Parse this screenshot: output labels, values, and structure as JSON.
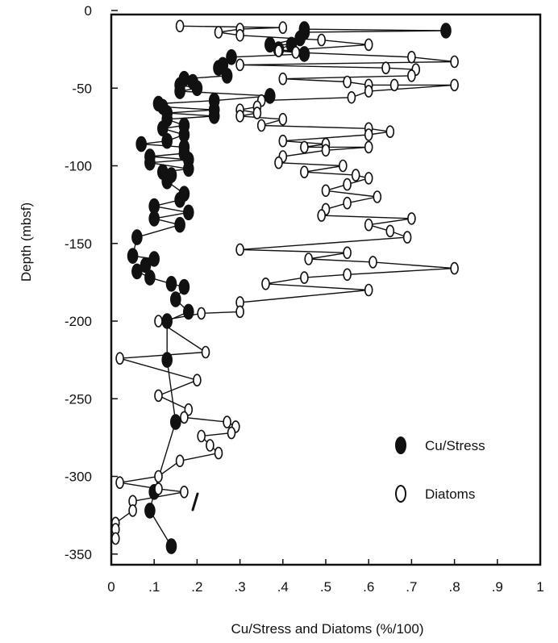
{
  "chart_data": {
    "type": "scatter",
    "xlabel": "Cu/Stress and Diatoms (%/100)",
    "ylabel": "Depth (mbsf)",
    "xlim": [
      0,
      1
    ],
    "ylim": [
      -360,
      0
    ],
    "x_ticks": [
      {
        "value": 0,
        "label": "0"
      },
      {
        "value": 0.1,
        "label": ".1"
      },
      {
        "value": 0.2,
        "label": ".2"
      },
      {
        "value": 0.3,
        "label": ".3"
      },
      {
        "value": 0.4,
        "label": ".4"
      },
      {
        "value": 0.5,
        "label": ".5"
      },
      {
        "value": 0.6,
        "label": ".6"
      },
      {
        "value": 0.7,
        "label": ".7"
      },
      {
        "value": 0.8,
        "label": ".8"
      },
      {
        "value": 0.9,
        "label": ".9"
      },
      {
        "value": 1.0,
        "label": "1"
      }
    ],
    "y_ticks": [
      {
        "value": 0,
        "label": "0"
      },
      {
        "value": -50,
        "label": "-50"
      },
      {
        "value": -100,
        "label": "-100"
      },
      {
        "value": -150,
        "label": "-150"
      },
      {
        "value": -200,
        "label": "-200"
      },
      {
        "value": -250,
        "label": "-250"
      },
      {
        "value": -300,
        "label": "-300"
      },
      {
        "value": -350,
        "label": "-350"
      }
    ],
    "legend_position": "lower-right",
    "series": [
      {
        "name": "Cu/Stress",
        "marker": "filled-ellipse",
        "color": "#111111",
        "points": [
          [
            0.45,
            -12
          ],
          [
            0.78,
            -13
          ],
          [
            0.45,
            -14
          ],
          [
            0.44,
            -18
          ],
          [
            0.37,
            -22
          ],
          [
            0.42,
            -22
          ],
          [
            0.39,
            -25
          ],
          [
            0.45,
            -28
          ],
          [
            0.28,
            -30
          ],
          [
            0.26,
            -35
          ],
          [
            0.25,
            -37
          ],
          [
            0.27,
            -42
          ],
          [
            0.17,
            -44
          ],
          [
            0.19,
            -46
          ],
          [
            0.16,
            -48
          ],
          [
            0.2,
            -50
          ],
          [
            0.16,
            -52
          ],
          [
            0.37,
            -55
          ],
          [
            0.24,
            -58
          ],
          [
            0.11,
            -60
          ],
          [
            0.12,
            -62
          ],
          [
            0.24,
            -64
          ],
          [
            0.13,
            -66
          ],
          [
            0.24,
            -68
          ],
          [
            0.13,
            -70
          ],
          [
            0.17,
            -74
          ],
          [
            0.12,
            -76
          ],
          [
            0.17,
            -80
          ],
          [
            0.13,
            -84
          ],
          [
            0.07,
            -86
          ],
          [
            0.17,
            -88
          ],
          [
            0.17,
            -92
          ],
          [
            0.09,
            -94
          ],
          [
            0.18,
            -96
          ],
          [
            0.09,
            -98
          ],
          [
            0.18,
            -102
          ],
          [
            0.12,
            -104
          ],
          [
            0.14,
            -106
          ],
          [
            0.13,
            -110
          ],
          [
            0.17,
            -118
          ],
          [
            0.16,
            -122
          ],
          [
            0.1,
            -126
          ],
          [
            0.18,
            -130
          ],
          [
            0.1,
            -134
          ],
          [
            0.16,
            -138
          ],
          [
            0.06,
            -146
          ],
          [
            0.05,
            -158
          ],
          [
            0.1,
            -160
          ],
          [
            0.08,
            -164
          ],
          [
            0.06,
            -168
          ],
          [
            0.09,
            -172
          ],
          [
            0.14,
            -176
          ],
          [
            0.17,
            -178
          ],
          [
            0.15,
            -186
          ],
          [
            0.18,
            -194
          ],
          [
            0.13,
            -200
          ],
          [
            0.13,
            -225
          ],
          [
            0.15,
            -265
          ],
          [
            0.1,
            -310
          ],
          [
            0.09,
            -322
          ],
          [
            0.14,
            -345
          ]
        ]
      },
      {
        "name": "Diatoms",
        "marker": "open-ellipse",
        "color": "#111111",
        "points": [
          [
            0.16,
            -10
          ],
          [
            0.4,
            -11
          ],
          [
            0.3,
            -12
          ],
          [
            0.25,
            -14
          ],
          [
            0.3,
            -16
          ],
          [
            0.49,
            -19
          ],
          [
            0.6,
            -22
          ],
          [
            0.39,
            -26
          ],
          [
            0.43,
            -27
          ],
          [
            0.7,
            -30
          ],
          [
            0.8,
            -33
          ],
          [
            0.3,
            -35
          ],
          [
            0.64,
            -37
          ],
          [
            0.71,
            -38
          ],
          [
            0.7,
            -42
          ],
          [
            0.4,
            -44
          ],
          [
            0.55,
            -46
          ],
          [
            0.6,
            -48
          ],
          [
            0.66,
            -48
          ],
          [
            0.8,
            -48
          ],
          [
            0.6,
            -52
          ],
          [
            0.56,
            -56
          ],
          [
            0.35,
            -58
          ],
          [
            0.34,
            -62
          ],
          [
            0.3,
            -64
          ],
          [
            0.34,
            -66
          ],
          [
            0.3,
            -68
          ],
          [
            0.4,
            -70
          ],
          [
            0.35,
            -74
          ],
          [
            0.6,
            -76
          ],
          [
            0.65,
            -78
          ],
          [
            0.6,
            -80
          ],
          [
            0.4,
            -84
          ],
          [
            0.5,
            -86
          ],
          [
            0.45,
            -88
          ],
          [
            0.6,
            -88
          ],
          [
            0.5,
            -90
          ],
          [
            0.4,
            -94
          ],
          [
            0.39,
            -98
          ],
          [
            0.54,
            -100
          ],
          [
            0.45,
            -104
          ],
          [
            0.57,
            -106
          ],
          [
            0.6,
            -108
          ],
          [
            0.55,
            -112
          ],
          [
            0.5,
            -116
          ],
          [
            0.62,
            -120
          ],
          [
            0.55,
            -124
          ],
          [
            0.5,
            -128
          ],
          [
            0.49,
            -132
          ],
          [
            0.7,
            -134
          ],
          [
            0.6,
            -138
          ],
          [
            0.65,
            -142
          ],
          [
            0.69,
            -146
          ],
          [
            0.3,
            -154
          ],
          [
            0.55,
            -156
          ],
          [
            0.46,
            -160
          ],
          [
            0.61,
            -162
          ],
          [
            0.8,
            -166
          ],
          [
            0.55,
            -170
          ],
          [
            0.45,
            -172
          ],
          [
            0.36,
            -176
          ],
          [
            0.6,
            -180
          ],
          [
            0.3,
            -188
          ],
          [
            0.3,
            -194
          ],
          [
            0.21,
            -195
          ],
          [
            0.11,
            -200
          ],
          [
            0.22,
            -220
          ],
          [
            0.02,
            -224
          ],
          [
            0.2,
            -238
          ],
          [
            0.11,
            -248
          ],
          [
            0.18,
            -257
          ],
          [
            0.17,
            -262
          ],
          [
            0.27,
            -265
          ],
          [
            0.29,
            -268
          ],
          [
            0.28,
            -272
          ],
          [
            0.21,
            -274
          ],
          [
            0.23,
            -280
          ],
          [
            0.25,
            -285
          ],
          [
            0.16,
            -290
          ],
          [
            0.11,
            -300
          ],
          [
            0.02,
            -304
          ],
          [
            0.11,
            -308
          ],
          [
            0.17,
            -310
          ],
          [
            0.05,
            -316
          ],
          [
            0.05,
            -322
          ],
          [
            0.01,
            -330
          ],
          [
            0.01,
            -334
          ],
          [
            0.01,
            -340
          ]
        ]
      }
    ]
  }
}
